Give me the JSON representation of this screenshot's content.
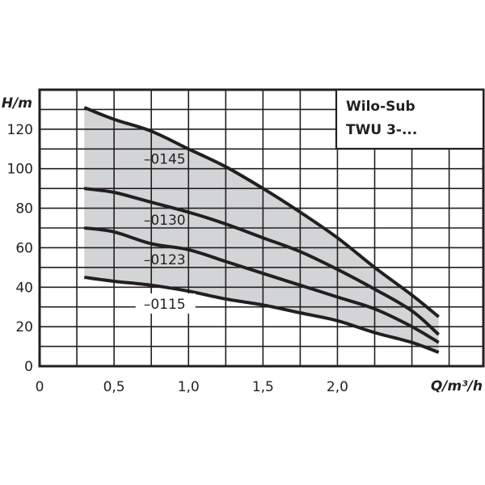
{
  "chart_data": {
    "type": "line",
    "title": "Wilo-Sub TWU 3-...",
    "legend_box": {
      "line1": "Wilo-Sub",
      "line2": "TWU 3-...",
      "position": "top-right"
    },
    "xlabel": "Q/m³/h",
    "ylabel": "H/m",
    "xlim": [
      0,
      2.98
    ],
    "ylim": [
      0,
      140
    ],
    "x_ticks": [
      {
        "value": 0,
        "label": "0"
      },
      {
        "value": 0.5,
        "label": "0,5"
      },
      {
        "value": 1.0,
        "label": "1,0"
      },
      {
        "value": 1.5,
        "label": "1,5"
      },
      {
        "value": 2.0,
        "label": "2,0"
      }
    ],
    "y_ticks": [
      {
        "value": 0,
        "label": "0"
      },
      {
        "value": 20,
        "label": "20"
      },
      {
        "value": 40,
        "label": "40"
      },
      {
        "value": 60,
        "label": "60"
      },
      {
        "value": 80,
        "label": "80"
      },
      {
        "value": 100,
        "label": "100"
      },
      {
        "value": 120,
        "label": "120"
      }
    ],
    "grid": {
      "on": true,
      "x_step": 0.25,
      "y_step": 10
    },
    "shaded_region": {
      "description": "operating range between Q=0.3 and Q=2.68 under top curve",
      "color": "#d3d4d6"
    },
    "x": [
      0.3,
      0.5,
      0.75,
      1.0,
      1.25,
      1.5,
      1.75,
      2.0,
      2.25,
      2.5,
      2.68
    ],
    "series": [
      {
        "name": "-0145",
        "values": [
          131,
          125,
          119,
          110,
          101,
          90,
          78,
          65,
          50,
          36,
          25
        ],
        "label_pos": {
          "x": 0.84,
          "y": 105
        }
      },
      {
        "name": "-0130",
        "values": [
          90,
          88,
          83,
          78,
          72,
          65,
          58,
          49,
          39,
          28,
          16
        ],
        "label_pos": {
          "x": 0.84,
          "y": 74
        }
      },
      {
        "name": "-0123",
        "values": [
          70,
          68,
          62,
          59,
          53,
          47,
          41,
          35,
          29,
          20,
          12
        ],
        "label_pos": {
          "x": 0.84,
          "y": 54
        }
      },
      {
        "name": "-0115",
        "values": [
          45,
          43,
          41,
          38,
          34,
          31,
          27,
          23,
          17,
          12,
          7
        ],
        "label_pos": {
          "x": 0.84,
          "y": 31.5
        }
      }
    ],
    "colors": {
      "line": "#231f20",
      "grid": "#231f20",
      "fill": "#d3d4d6",
      "background": "#ffffff"
    }
  }
}
